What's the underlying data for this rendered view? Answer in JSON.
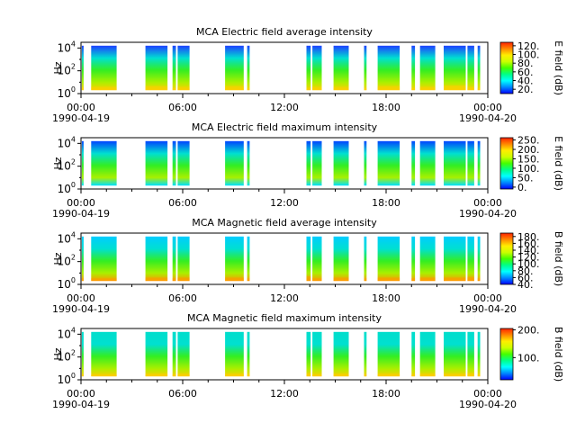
{
  "x_range": [
    "1990-04-19 00:00",
    "1990-04-20 00:00"
  ],
  "x_ticks": [
    {
      "hour": 0,
      "label": "00:00",
      "date": "1990-04-19"
    },
    {
      "hour": 6,
      "label": "06:00"
    },
    {
      "hour": 12,
      "label": "12:00"
    },
    {
      "hour": 18,
      "label": "18:00"
    },
    {
      "hour": 24,
      "label": "00:00",
      "date": "1990-04-20"
    }
  ],
  "y_ticks": [
    {
      "exp": 0,
      "base": "10",
      "sup": "0"
    },
    {
      "exp": 2,
      "base": "10",
      "sup": "2"
    },
    {
      "exp": 4,
      "base": "10",
      "sup": "4"
    }
  ],
  "colormap": [
    "#0000ff",
    "#0088ff",
    "#00ffff",
    "#00ff88",
    "#44ff00",
    "#ccff00",
    "#ffee00",
    "#ff8800",
    "#ff2200"
  ],
  "chart_data": [
    {
      "type": "heatmap",
      "title": "MCA  Electric field average intensity",
      "ylabel": "Hz",
      "ylim_log10": [
        0,
        4.5
      ],
      "cbar_label": "E field (dB)",
      "cbar_range": [
        10,
        128
      ],
      "cbar_ticks": [
        {
          "value": 20,
          "label": "20."
        },
        {
          "value": 40,
          "label": "40."
        },
        {
          "value": 60,
          "label": "60."
        },
        {
          "value": 80,
          "label": "80."
        },
        {
          "value": 100,
          "label": "100."
        },
        {
          "value": 120,
          "label": "120."
        }
      ],
      "top_color": "#1e40ff",
      "low_color": "#ffd000",
      "intervals": [
        [
          0.05,
          0.15,
          0.45
        ],
        [
          0.6,
          2.1,
          0.5
        ],
        [
          3.8,
          5.1,
          0.55
        ],
        [
          5.4,
          5.6,
          0.4
        ],
        [
          5.7,
          6.4,
          0.5
        ],
        [
          8.5,
          9.6,
          0.55
        ],
        [
          9.8,
          9.95,
          0.4
        ],
        [
          13.3,
          13.55,
          0.45
        ],
        [
          13.65,
          14.2,
          0.5
        ],
        [
          14.9,
          15.8,
          0.5
        ],
        [
          16.7,
          16.85,
          0.4
        ],
        [
          17.5,
          18.8,
          0.55
        ],
        [
          19.5,
          19.7,
          0.4
        ],
        [
          20.0,
          20.9,
          0.5
        ],
        [
          21.4,
          22.7,
          0.6
        ],
        [
          22.8,
          23.2,
          0.5
        ],
        [
          23.4,
          23.55,
          0.4
        ]
      ]
    },
    {
      "type": "heatmap",
      "title": "MCA  Electric field maximum intensity",
      "ylabel": "Hz",
      "ylim_log10": [
        0,
        4.5
      ],
      "cbar_label": "E field (dB)",
      "cbar_range": [
        -10,
        262
      ],
      "cbar_ticks": [
        {
          "value": 0,
          "label": "0."
        },
        {
          "value": 50,
          "label": "50."
        },
        {
          "value": 100,
          "label": "100."
        },
        {
          "value": 150,
          "label": "150."
        },
        {
          "value": 200,
          "label": "200."
        },
        {
          "value": 250,
          "label": "250."
        }
      ],
      "top_color": "#0044ff",
      "low_color": "#00e0ff",
      "intervals": [
        [
          0.05,
          0.15,
          0.25
        ],
        [
          0.6,
          2.1,
          0.3
        ],
        [
          3.8,
          5.1,
          0.3
        ],
        [
          5.4,
          5.6,
          0.25
        ],
        [
          5.7,
          6.4,
          0.3
        ],
        [
          8.5,
          9.6,
          0.3
        ],
        [
          9.8,
          9.95,
          0.25
        ],
        [
          13.3,
          13.55,
          0.25
        ],
        [
          13.65,
          14.2,
          0.3
        ],
        [
          14.9,
          15.8,
          0.3
        ],
        [
          16.7,
          16.85,
          0.25
        ],
        [
          17.5,
          18.8,
          0.3
        ],
        [
          19.5,
          19.7,
          0.25
        ],
        [
          20.0,
          20.9,
          0.3
        ],
        [
          21.4,
          22.7,
          0.3
        ],
        [
          22.8,
          23.2,
          0.3
        ],
        [
          23.4,
          23.55,
          0.25
        ]
      ]
    },
    {
      "type": "heatmap",
      "title": "MCA  Magnetic field average intensity",
      "ylabel": "Hz",
      "ylim_log10": [
        0,
        4.5
      ],
      "cbar_label": "B field (dB)",
      "cbar_range": [
        40,
        190
      ],
      "cbar_ticks": [
        {
          "value": 40,
          "label": "40."
        },
        {
          "value": 60,
          "label": "60."
        },
        {
          "value": 80,
          "label": "80."
        },
        {
          "value": 100,
          "label": "100."
        },
        {
          "value": 120,
          "label": "120."
        },
        {
          "value": 140,
          "label": "140."
        },
        {
          "value": 160,
          "label": "160."
        },
        {
          "value": 180,
          "label": "180."
        }
      ],
      "top_color": "#00ccff",
      "low_color": "#ff9900",
      "intervals": [
        [
          0.05,
          0.15,
          0.45
        ],
        [
          0.6,
          2.1,
          0.45
        ],
        [
          3.8,
          5.1,
          0.5
        ],
        [
          5.4,
          5.6,
          0.45
        ],
        [
          5.7,
          6.4,
          0.5
        ],
        [
          8.5,
          9.6,
          0.5
        ],
        [
          9.8,
          9.95,
          0.45
        ],
        [
          13.3,
          13.55,
          0.6
        ],
        [
          13.65,
          14.2,
          0.45
        ],
        [
          14.9,
          15.8,
          0.5
        ],
        [
          16.7,
          16.85,
          0.45
        ],
        [
          17.5,
          18.8,
          0.5
        ],
        [
          19.5,
          19.7,
          0.45
        ],
        [
          20.0,
          20.9,
          0.5
        ],
        [
          21.4,
          22.7,
          0.5
        ],
        [
          22.8,
          23.2,
          0.55
        ],
        [
          23.4,
          23.55,
          0.45
        ]
      ]
    },
    {
      "type": "heatmap",
      "title": "MCA  Magnetic field maximum intensity",
      "ylabel": "Hz",
      "ylim_log10": [
        0,
        4.5
      ],
      "cbar_label": "B field (dB)",
      "cbar_range": [
        20,
        205
      ],
      "cbar_ticks": [
        {
          "value": 100,
          "label": "100."
        },
        {
          "value": 200,
          "label": "200."
        }
      ],
      "top_color": "#00ddcc",
      "low_color": "#ffcc00",
      "intervals": [
        [
          0.05,
          0.15,
          0.4
        ],
        [
          0.6,
          2.1,
          0.4
        ],
        [
          3.8,
          5.1,
          0.45
        ],
        [
          5.4,
          5.6,
          0.4
        ],
        [
          5.7,
          6.4,
          0.45
        ],
        [
          8.5,
          9.6,
          0.45
        ],
        [
          9.8,
          9.95,
          0.4
        ],
        [
          13.3,
          13.55,
          0.5
        ],
        [
          13.65,
          14.2,
          0.4
        ],
        [
          14.9,
          15.8,
          0.45
        ],
        [
          16.7,
          16.85,
          0.4
        ],
        [
          17.5,
          18.8,
          0.45
        ],
        [
          19.5,
          19.7,
          0.4
        ],
        [
          20.0,
          20.9,
          0.45
        ],
        [
          21.4,
          22.7,
          0.45
        ],
        [
          22.8,
          23.2,
          0.5
        ],
        [
          23.4,
          23.55,
          0.4
        ]
      ]
    }
  ]
}
